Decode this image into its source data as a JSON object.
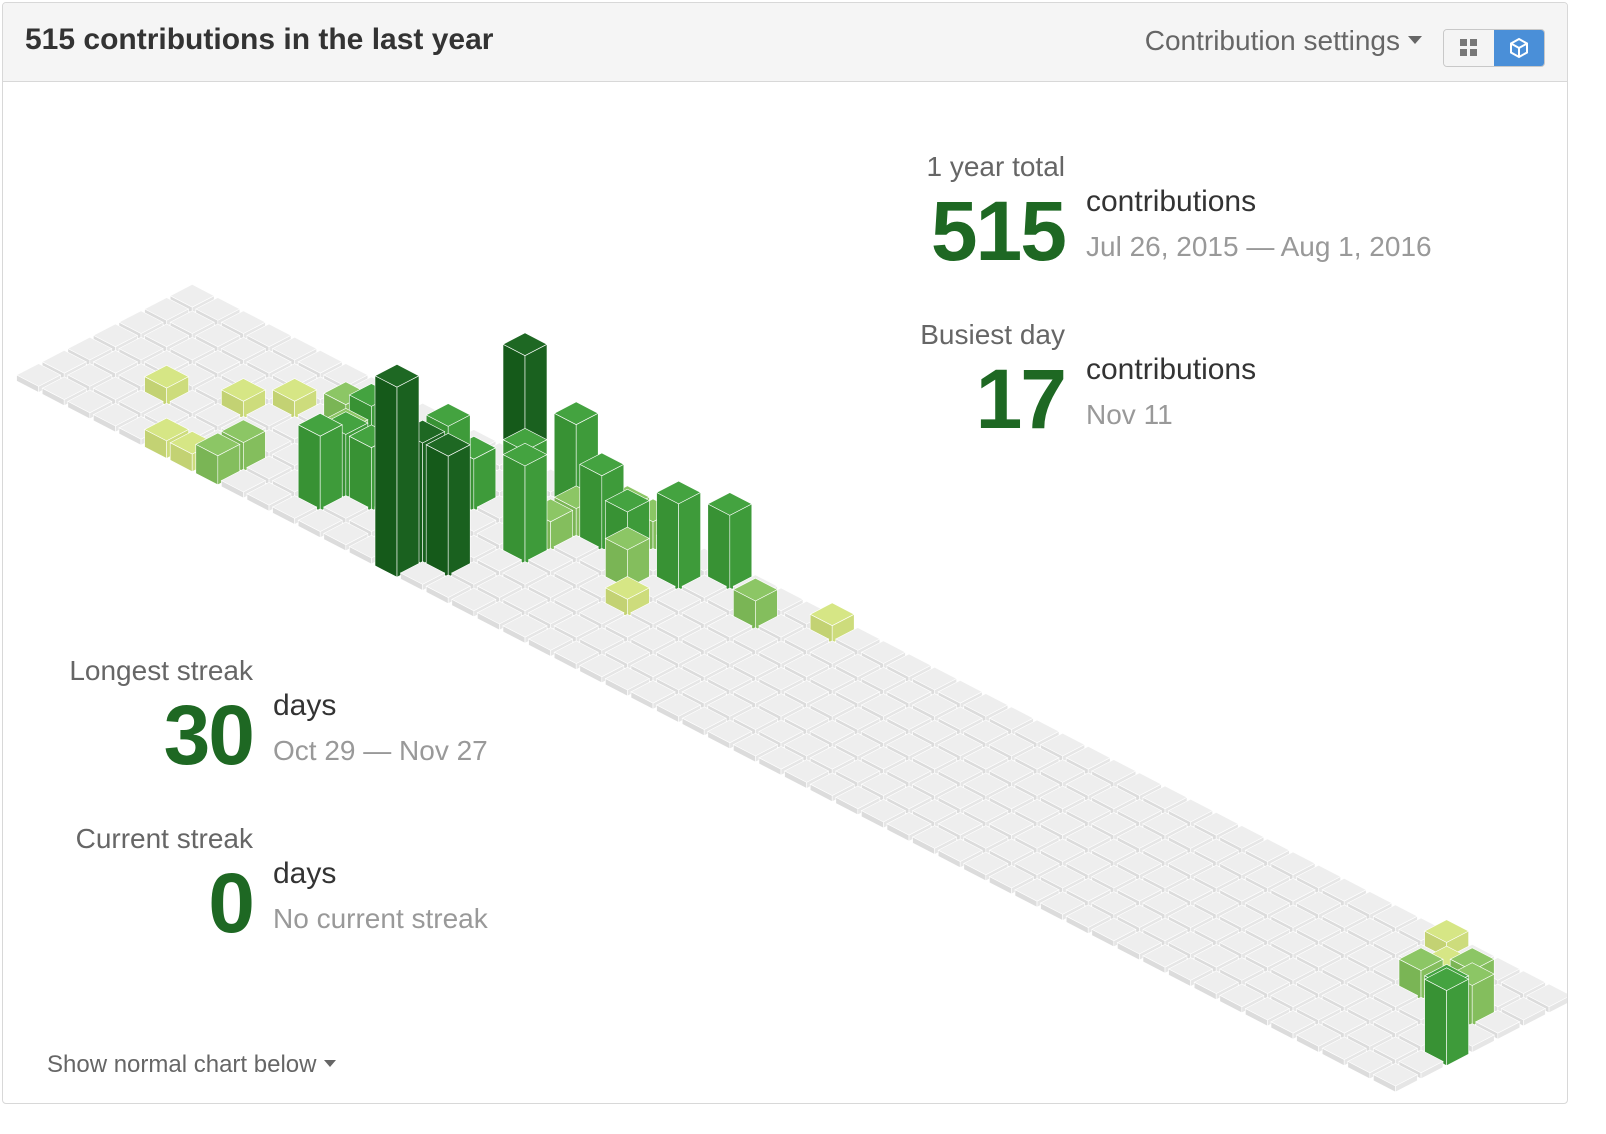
{
  "header": {
    "title": "515 contributions in the last year",
    "settings_label": "Contribution settings",
    "view_toggle": [
      "grid-view",
      "isometric-view"
    ]
  },
  "stats": {
    "year_total": {
      "label": "1 year total",
      "value": "515",
      "unit": "contributions",
      "range": "Jul 26, 2015 — Aug 1, 2016"
    },
    "busiest_day": {
      "label": "Busiest day",
      "value": "17",
      "unit": "contributions",
      "range": "Nov 11"
    },
    "longest_streak": {
      "label": "Longest streak",
      "value": "30",
      "unit": "days",
      "range": "Oct 29 — Nov 27"
    },
    "current_streak": {
      "label": "Current streak",
      "value": "0",
      "unit": "days",
      "range": "No current streak"
    }
  },
  "footer": {
    "show_link": "Show normal chart below"
  },
  "colors": {
    "empty": "#ebebeb",
    "level1": "#d6e685",
    "level2": "#8cc665",
    "level3": "#44a340",
    "level4": "#1e6823",
    "accent": "#1e6823",
    "toggle_active": "#4a8fd8"
  },
  "chart_data": {
    "type": "heatmap",
    "weeks": 54,
    "days": 7,
    "cells": [
      [
        5,
        0,
        1
      ],
      [
        6,
        0,
        1
      ],
      [
        7,
        0,
        2
      ],
      [
        3,
        2,
        1
      ],
      [
        5,
        3,
        1
      ],
      [
        6,
        4,
        1
      ],
      [
        7,
        1,
        2
      ],
      [
        9,
        3,
        3
      ],
      [
        9,
        4,
        4
      ],
      [
        8,
        4,
        3
      ],
      [
        10,
        1,
        6
      ],
      [
        10,
        2,
        5
      ],
      [
        11,
        2,
        5
      ],
      [
        11,
        4,
        1
      ],
      [
        12,
        3,
        5
      ],
      [
        12,
        4,
        3
      ],
      [
        13,
        3,
        8
      ],
      [
        13,
        4,
        4
      ],
      [
        14,
        0,
        16
      ],
      [
        14,
        1,
        10
      ],
      [
        14,
        5,
        13
      ],
      [
        15,
        1,
        10
      ],
      [
        15,
        4,
        7
      ],
      [
        15,
        6,
        7
      ],
      [
        16,
        3,
        8
      ],
      [
        16,
        4,
        2
      ],
      [
        17,
        6,
        2
      ],
      [
        16,
        5,
        2
      ],
      [
        17,
        5,
        6
      ],
      [
        18,
        5,
        4
      ],
      [
        18,
        6,
        2
      ],
      [
        19,
        6,
        1
      ],
      [
        19,
        4,
        3
      ],
      [
        19,
        7,
        2
      ],
      [
        20,
        5,
        7
      ],
      [
        20,
        3,
        1
      ],
      [
        21,
        6,
        6
      ],
      [
        21,
        7,
        6
      ],
      [
        20,
        8,
        2
      ],
      [
        20,
        9,
        1
      ],
      [
        21,
        9,
        1
      ],
      [
        22,
        9,
        1
      ],
      [
        23,
        5,
        2
      ],
      [
        23,
        7,
        1
      ],
      [
        24,
        7,
        1
      ],
      [
        24,
        8,
        1
      ],
      [
        25,
        8,
        1
      ],
      [
        26,
        9,
        2
      ],
      [
        27,
        9,
        2
      ],
      [
        28,
        9,
        3
      ],
      [
        28,
        8,
        4
      ],
      [
        29,
        9,
        5
      ],
      [
        29,
        10,
        1
      ],
      [
        31,
        10,
        3
      ],
      [
        31,
        11,
        1
      ],
      [
        32,
        10,
        3
      ],
      [
        32,
        11,
        2
      ],
      [
        33,
        10,
        3
      ],
      [
        34,
        10,
        4
      ],
      [
        35,
        10,
        3
      ],
      [
        36,
        10,
        2
      ],
      [
        36,
        11,
        1
      ],
      [
        37,
        11,
        2
      ],
      [
        38,
        11,
        2
      ],
      [
        34,
        11,
        3
      ],
      [
        35,
        11,
        2
      ],
      [
        36,
        9,
        3
      ],
      [
        37,
        9,
        5
      ],
      [
        37,
        10,
        2
      ],
      [
        38,
        10,
        3
      ],
      [
        39,
        10,
        4
      ],
      [
        39,
        11,
        2
      ],
      [
        40,
        9,
        4
      ],
      [
        41,
        9,
        3
      ],
      [
        41,
        10,
        5
      ],
      [
        42,
        10,
        2
      ],
      [
        42,
        11,
        1
      ],
      [
        43,
        9,
        3
      ],
      [
        40,
        11,
        2
      ],
      [
        33,
        9,
        10
      ],
      [
        34,
        9,
        8
      ],
      [
        35,
        9,
        5
      ],
      [
        30,
        7,
        3
      ],
      [
        30,
        8,
        2
      ],
      [
        32,
        7,
        1
      ],
      [
        25,
        6,
        1
      ],
      [
        51,
        5,
        2
      ],
      [
        52,
        3,
        4
      ],
      [
        52,
        4,
        3
      ],
      [
        53,
        2,
        6
      ],
      [
        50,
        4,
        2
      ],
      [
        50,
        5,
        1
      ],
      [
        49,
        6,
        1
      ],
      [
        48,
        7,
        1
      ]
    ]
  }
}
